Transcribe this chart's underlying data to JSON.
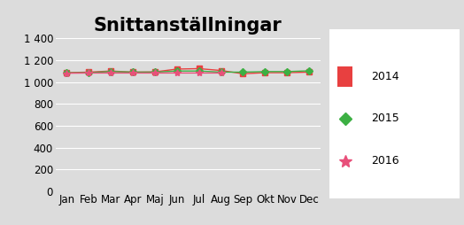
{
  "title": "Snittanställningar",
  "months": [
    "Jan",
    "Feb",
    "Mar",
    "Apr",
    "Maj",
    "Jun",
    "Jul",
    "Aug",
    "Sep",
    "Okt",
    "Nov",
    "Dec"
  ],
  "series": {
    "2014": [
      1085,
      1090,
      1100,
      1090,
      1092,
      1118,
      1122,
      1105,
      1075,
      1085,
      1085,
      1090
    ],
    "2015": [
      1083,
      1085,
      1095,
      1090,
      1090,
      1100,
      1100,
      1090,
      1090,
      1095,
      1095,
      1102
    ],
    "2016": [
      1080,
      1082,
      1082,
      1082,
      1082,
      1082,
      1082,
      1082,
      null,
      null,
      null,
      null
    ]
  },
  "ylim": [
    0,
    1400
  ],
  "yticks": [
    0,
    200,
    400,
    600,
    800,
    1000,
    1200,
    1400
  ],
  "ytick_labels": [
    "0",
    "200",
    "400",
    "600",
    "800",
    "1 000",
    "1 200",
    "1 400"
  ],
  "bg_color": "#dcdcdc",
  "plot_bg_color": "#dcdcdc",
  "legend_bg_color": "#f5f5f5",
  "title_fontsize": 15,
  "tick_fontsize": 8.5,
  "legend_fontsize": 9,
  "color_2014": "#e84040",
  "color_2015": "#3cb043",
  "color_2016": "#e8507a"
}
